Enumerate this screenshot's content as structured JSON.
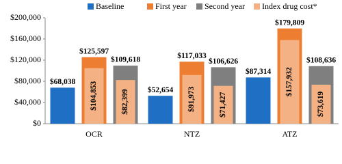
{
  "chart_data": {
    "type": "bar",
    "categories": [
      "OCR",
      "NTZ",
      "ATZ"
    ],
    "series": [
      {
        "name": "Baseline",
        "color": "#1f6fc4",
        "values": [
          68038,
          52654,
          87314
        ],
        "value_labels": [
          "$68,038",
          "$52,654",
          "$87,314"
        ]
      },
      {
        "name": "First year",
        "color": "#ed7d31",
        "values": [
          125597,
          117033,
          179809
        ],
        "value_labels": [
          "$125,597",
          "$117,033",
          "$179,809"
        ]
      },
      {
        "name": "Second year",
        "color": "#7f7f7f",
        "values": [
          109618,
          106626,
          108636
        ],
        "value_labels": [
          "$109,618",
          "$106,626",
          "$108,636"
        ]
      },
      {
        "name": "Index drug cost*",
        "color": "#f4b183",
        "first_year_values": [
          104853,
          91973,
          157932
        ],
        "first_year_value_labels": [
          "$104,853",
          "$91,973",
          "$157,932"
        ],
        "second_year_values": [
          82399,
          71427,
          73619
        ],
        "second_year_value_labels": [
          "$82,399",
          "$71,427",
          "$73,619"
        ]
      }
    ],
    "ylim": [
      0,
      200000
    ],
    "yticks": [
      {
        "value": 0,
        "label": "$0"
      },
      {
        "value": 40000,
        "label": "$40,000"
      },
      {
        "value": 80000,
        "label": "$80,000"
      },
      {
        "value": 120000,
        "label": "$120,000"
      },
      {
        "value": 160000,
        "label": "$160,000"
      },
      {
        "value": 200000,
        "label": "$200,000"
      }
    ],
    "legend": "top"
  }
}
